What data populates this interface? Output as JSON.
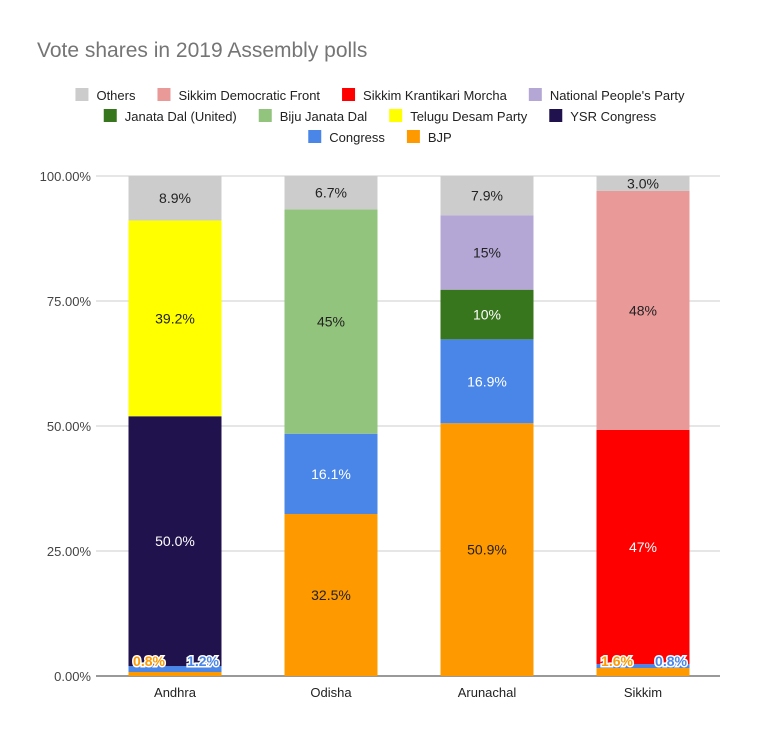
{
  "chart_data": {
    "type": "bar",
    "stacked": true,
    "title": "Vote shares in 2019 Assembly polls",
    "categories": [
      "Andhra",
      "Odisha",
      "Arunachal",
      "Sikkim"
    ],
    "ylim": [
      0,
      100
    ],
    "yticks": [
      "0.00%",
      "25.00%",
      "50.00%",
      "75.00%",
      "100.00%"
    ],
    "grid": true,
    "legend_position": "top",
    "legend_order": [
      "Others",
      "Sikkim Democratic Front",
      "Sikkim Krantikari Morcha",
      "National People's Party",
      "Janata Dal (United)",
      "Biju Janata Dal",
      "Telugu Desam Party",
      "YSR Congress",
      "Congress",
      "BJP"
    ],
    "series": [
      {
        "name": "BJP",
        "color": "#ff9900",
        "values": [
          0.8,
          32.5,
          50.9,
          1.6
        ],
        "labels": [
          "0.8%",
          "32.5%",
          "50.9%",
          "1.6%"
        ]
      },
      {
        "name": "Congress",
        "color": "#4a86e8",
        "values": [
          1.2,
          16.1,
          16.9,
          0.8
        ],
        "labels": [
          "1.2%",
          "16.1%",
          "16.9%",
          "0.8%"
        ]
      },
      {
        "name": "YSR Congress",
        "color": "#20124d",
        "values": [
          50.0,
          0,
          0,
          0
        ],
        "labels": [
          "50.0%",
          "",
          "",
          ""
        ]
      },
      {
        "name": "Telugu Desam Party",
        "color": "#ffff00",
        "values": [
          39.2,
          0,
          0,
          0
        ],
        "labels": [
          "39.2%",
          "",
          "",
          ""
        ]
      },
      {
        "name": "Biju Janata Dal",
        "color": "#93c47d",
        "values": [
          0,
          45,
          0,
          0
        ],
        "labels": [
          "",
          "45%",
          "",
          ""
        ]
      },
      {
        "name": "Janata Dal (United)",
        "color": "#38761d",
        "values": [
          0,
          0,
          10,
          0
        ],
        "labels": [
          "",
          "",
          "10%",
          ""
        ]
      },
      {
        "name": "National People's Party",
        "color": "#b4a7d6",
        "values": [
          0,
          0,
          15,
          0
        ],
        "labels": [
          "",
          "",
          "15%",
          ""
        ]
      },
      {
        "name": "Sikkim Krantikari Morcha",
        "color": "#ff0000",
        "values": [
          0,
          0,
          0,
          47
        ],
        "labels": [
          "",
          "",
          "",
          "47%"
        ]
      },
      {
        "name": "Sikkim Democratic Front",
        "color": "#ea9999",
        "values": [
          0,
          0,
          0,
          48
        ],
        "labels": [
          "",
          "",
          "",
          "48%"
        ]
      },
      {
        "name": "Others",
        "color": "#cccccc",
        "values": [
          8.9,
          6.7,
          7.9,
          3.0
        ],
        "labels": [
          "8.9%",
          "6.7%",
          "7.9%",
          "3.0%"
        ]
      }
    ]
  }
}
